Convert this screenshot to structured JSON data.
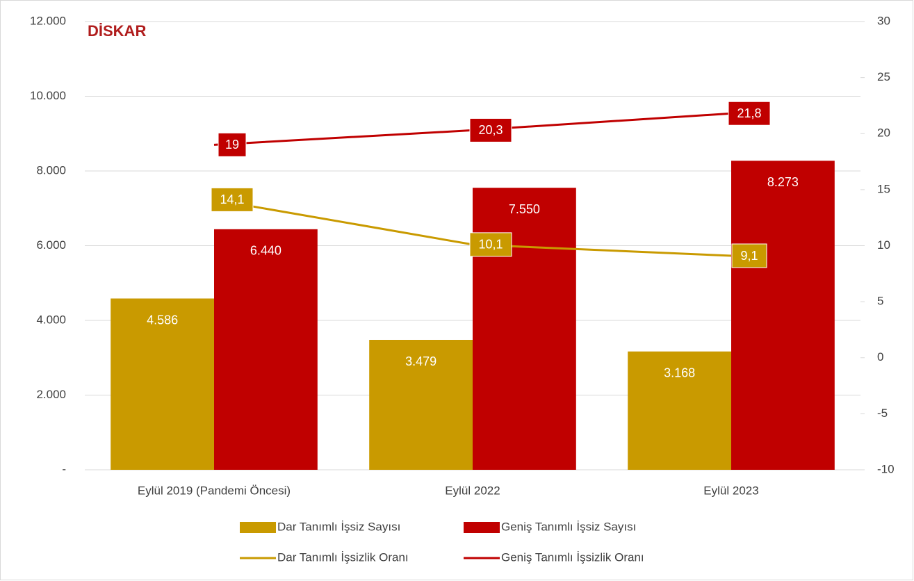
{
  "chart_data": {
    "type": "bar",
    "logo": "DİSKAR",
    "categories": [
      "Eylül 2019 (Pandemi Öncesi)",
      "Eylül 2022",
      "Eylül 2023"
    ],
    "series": [
      {
        "name": "Dar Tanımlı İşsiz Sayısı",
        "type": "bar",
        "color": "#C99A00",
        "values": [
          4586,
          3479,
          3168
        ],
        "value_labels": [
          "4.586",
          "3.479",
          "3.168"
        ]
      },
      {
        "name": "Geniş Tanımlı İşsiz Sayısı",
        "type": "bar",
        "color": "#C00000",
        "values": [
          6440,
          7550,
          8273
        ],
        "value_labels": [
          "6.440",
          "7.550",
          "8.273"
        ]
      },
      {
        "name": "Dar Tanımlı İşsizlik Oranı",
        "type": "line",
        "axis": "y2",
        "color": "#C99A00",
        "values": [
          14.1,
          10.1,
          9.1
        ],
        "value_labels": [
          "14,1",
          "10,1",
          "9,1"
        ]
      },
      {
        "name": "Geniş Tanımlı İşsizlik Oranı",
        "type": "line",
        "axis": "y2",
        "color": "#C00000",
        "values": [
          19,
          20.3,
          21.8
        ],
        "value_labels": [
          "19",
          "20,3",
          "21,8"
        ]
      }
    ],
    "ylim": [
      0,
      12000
    ],
    "yticks": [
      {
        "value": 0,
        "label": "-"
      },
      {
        "value": 2000,
        "label": "2.000"
      },
      {
        "value": 4000,
        "label": "4.000"
      },
      {
        "value": 6000,
        "label": "6.000"
      },
      {
        "value": 8000,
        "label": "8.000"
      },
      {
        "value": 10000,
        "label": "10.000"
      },
      {
        "value": 12000,
        "label": "12.000"
      }
    ],
    "y2lim": [
      -10,
      30
    ],
    "y2ticks": [
      -10,
      -5,
      0,
      5,
      10,
      15,
      20,
      25,
      30
    ],
    "grid": true
  }
}
